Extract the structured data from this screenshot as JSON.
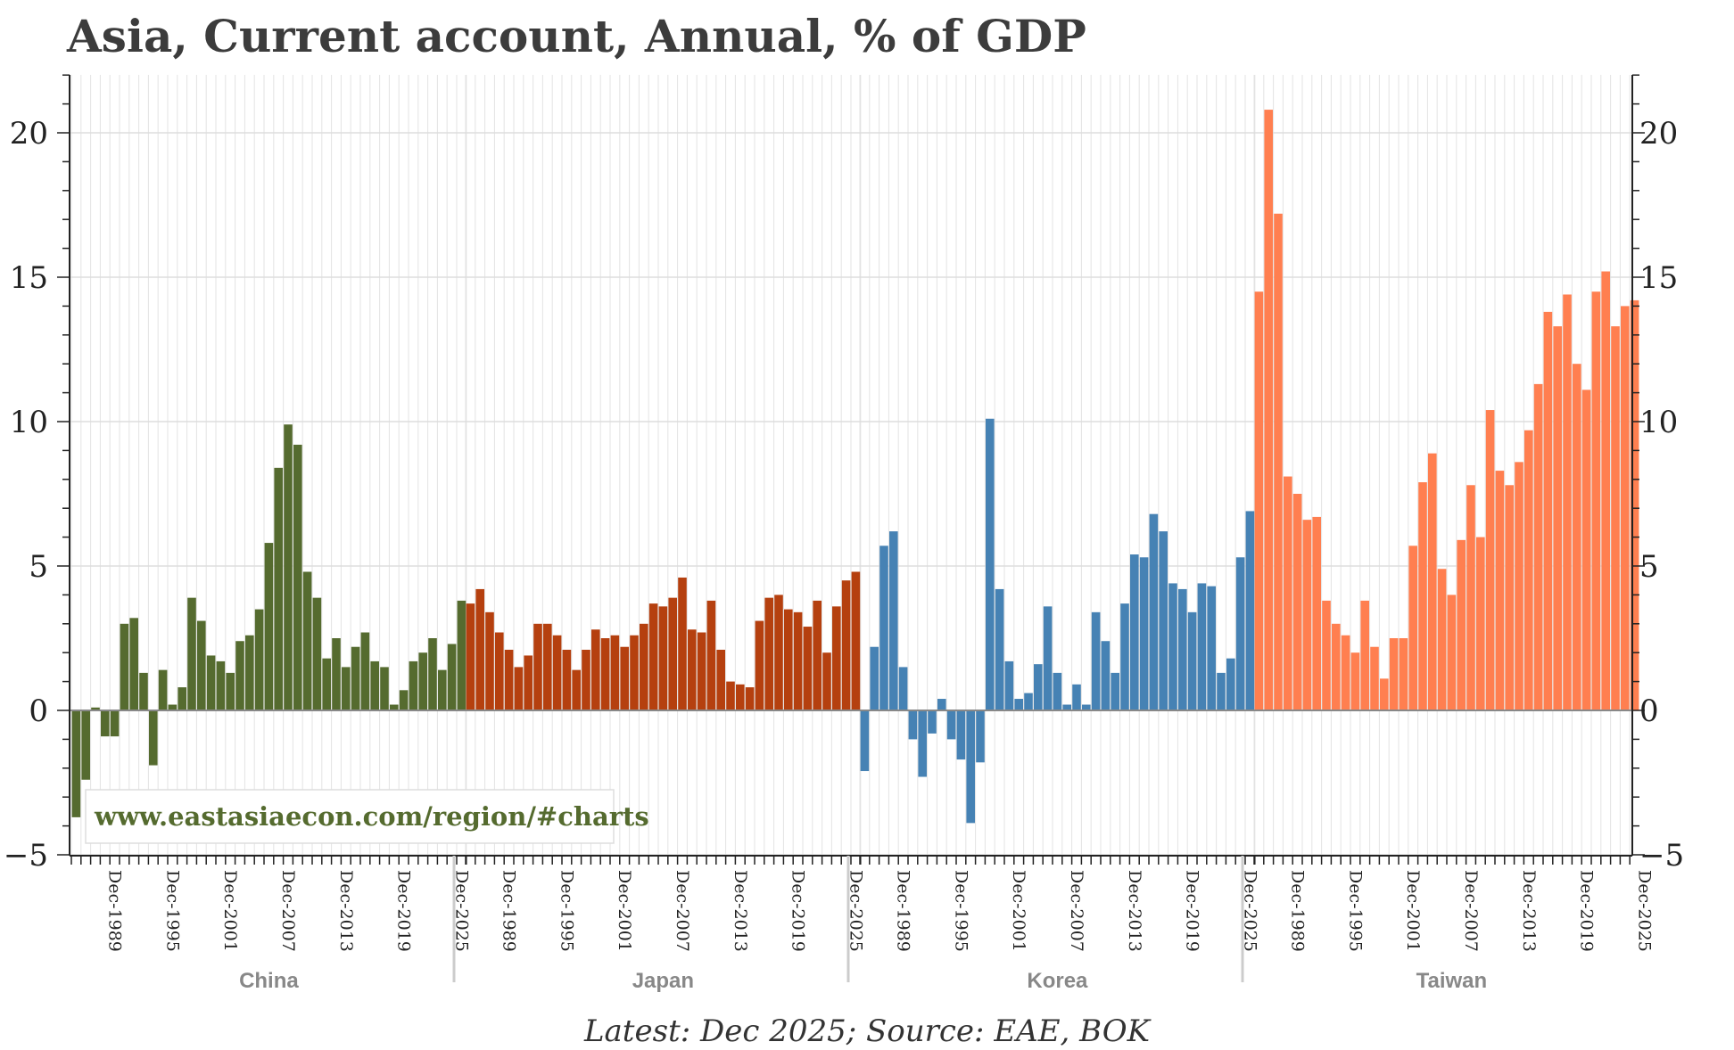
{
  "chart_data": {
    "type": "bar",
    "title": "Asia, Current account, Annual, % of GDP",
    "ylabel": "",
    "xlabel": "",
    "ylim": [
      -5,
      22
    ],
    "y_ticks": [
      -5,
      0,
      5,
      10,
      15,
      20
    ],
    "y_tick_labels": [
      "−5",
      "0",
      "5",
      "10",
      "15",
      "20"
    ],
    "x_tick_labels": [
      "Dec-1989",
      "Dec-1995",
      "Dec-2001",
      "Dec-2007",
      "Dec-2013",
      "Dec-2019",
      "Dec-2025"
    ],
    "groups": [
      {
        "name": "China",
        "color": "#556b2f",
        "first_year": 1985,
        "values": [
          -3.7,
          -2.4,
          0.1,
          -0.9,
          -0.9,
          3.0,
          3.2,
          1.3,
          -1.9,
          1.4,
          0.2,
          0.8,
          3.9,
          3.1,
          1.9,
          1.7,
          1.3,
          2.4,
          2.6,
          3.5,
          5.8,
          8.4,
          9.9,
          9.2,
          4.8,
          3.9,
          1.8,
          2.5,
          1.5,
          2.2,
          2.7,
          1.7,
          1.5,
          0.2,
          0.7,
          1.7,
          2.0,
          2.5,
          1.4,
          2.3,
          3.8
        ]
      },
      {
        "name": "Japan",
        "color": "#b5400f",
        "first_year": 1985,
        "values": [
          3.7,
          4.2,
          3.4,
          2.7,
          2.1,
          1.5,
          1.9,
          3.0,
          3.0,
          2.6,
          2.1,
          1.4,
          2.1,
          2.8,
          2.5,
          2.6,
          2.2,
          2.6,
          3.0,
          3.7,
          3.6,
          3.9,
          4.6,
          2.8,
          2.7,
          3.8,
          2.1,
          1.0,
          0.9,
          0.8,
          3.1,
          3.9,
          4.0,
          3.5,
          3.4,
          2.9,
          3.8,
          2.0,
          3.6,
          4.5,
          4.8
        ]
      },
      {
        "name": "Korea",
        "color": "#4682b4",
        "first_year": 1985,
        "values": [
          -2.1,
          2.2,
          5.7,
          6.2,
          1.5,
          -1.0,
          -2.3,
          -0.8,
          0.4,
          -1.0,
          -1.7,
          -3.9,
          -1.8,
          10.1,
          4.2,
          1.7,
          0.4,
          0.6,
          1.6,
          3.6,
          1.3,
          0.2,
          0.9,
          0.2,
          3.4,
          2.4,
          1.3,
          3.7,
          5.4,
          5.3,
          6.8,
          6.2,
          4.4,
          4.2,
          3.4,
          4.4,
          4.3,
          1.3,
          1.8,
          5.3,
          6.9
        ]
      },
      {
        "name": "Taiwan",
        "color": "#ff7f50",
        "first_year": 1985,
        "values": [
          14.5,
          20.8,
          17.2,
          8.1,
          7.5,
          6.6,
          6.7,
          3.8,
          3.0,
          2.6,
          2.0,
          3.8,
          2.2,
          1.1,
          2.5,
          2.5,
          5.7,
          7.9,
          8.9,
          4.9,
          4.0,
          5.9,
          7.8,
          6.0,
          10.4,
          8.3,
          7.8,
          8.6,
          9.7,
          11.3,
          13.8,
          13.3,
          14.4,
          12.0,
          11.1,
          14.5,
          15.2,
          13.3,
          14.0,
          14.2
        ]
      }
    ],
    "watermark": "www.eastasiaecon.com/region/#charts",
    "source": "Latest: Dec 2025; Source: EAE, BOK"
  }
}
